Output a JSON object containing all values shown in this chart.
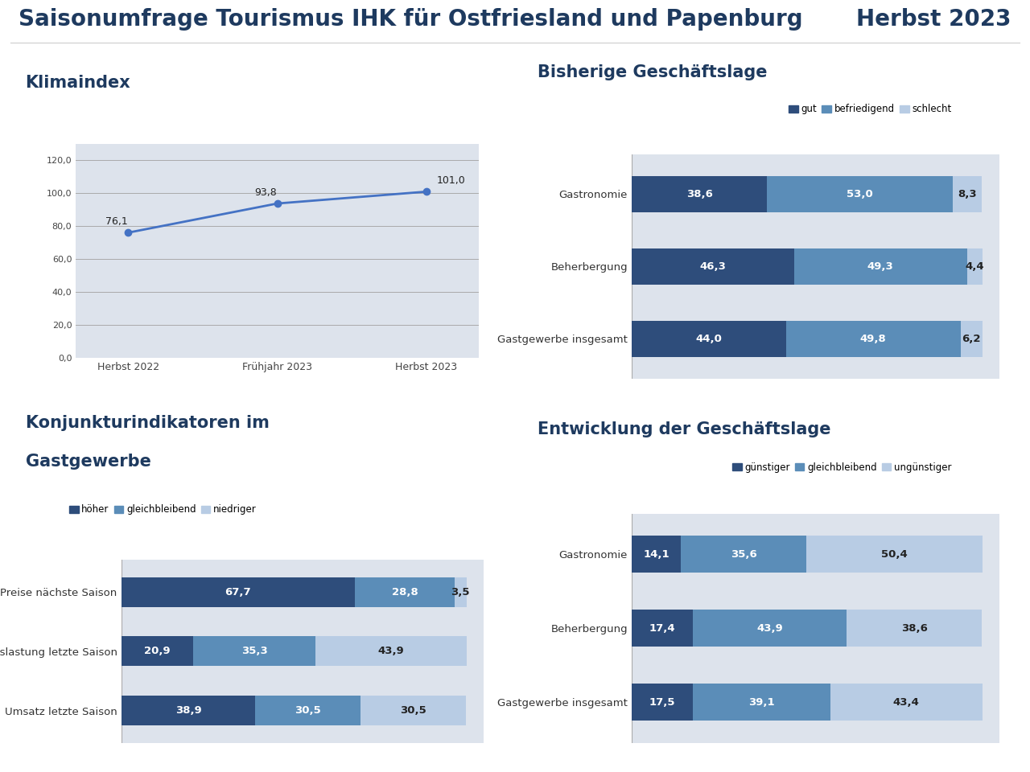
{
  "title": "Saisonumfrage Tourismus IHK für Ostfriesland und Papenburg",
  "title_right": "Herbst 2023",
  "bg_color": "#ffffff",
  "panel_bg": "#dde3ec",
  "icon_bg": "#1e3a5f",
  "header_color": "#1e3a5f",
  "klimaindex": {
    "title": "Klimaindex",
    "x_labels": [
      "Herbst 2022",
      "Frühjahr 2023",
      "Herbst 2023"
    ],
    "values": [
      76.1,
      93.8,
      101.0
    ],
    "line_color": "#4472c4",
    "marker_color": "#4472c4",
    "ylim": [
      0,
      130
    ],
    "yticks": [
      0.0,
      20.0,
      40.0,
      60.0,
      80.0,
      100.0,
      120.0
    ],
    "ytick_labels": [
      "0,0",
      "20,0",
      "40,0",
      "60,0",
      "80,0",
      "100,0",
      "120,0"
    ]
  },
  "bisherige": {
    "title": "Bisherige Geschäftslage",
    "categories": [
      "Gastronomie",
      "Beherbergung",
      "Gastgewerbe insgesamt"
    ],
    "legend_labels": [
      "gut",
      "befriedigend",
      "schlecht"
    ],
    "colors": [
      "#2e4d7b",
      "#5b8db8",
      "#b8cce4"
    ],
    "gut": [
      38.6,
      46.3,
      44.0
    ],
    "befriedigend": [
      53.0,
      49.3,
      49.8
    ],
    "schlecht": [
      8.3,
      4.4,
      6.2
    ]
  },
  "konjunktur": {
    "title_line1": "Konjunkturindikatoren im",
    "title_line2": "Gastgewerbe",
    "categories": [
      "Preise nächste Saison",
      "Auslastung letzte Saison",
      "Umsatz letzte Saison"
    ],
    "legend_labels": [
      "höher",
      "gleichbleibend",
      "niedriger"
    ],
    "colors": [
      "#2e4d7b",
      "#5b8db8",
      "#b8cce4"
    ],
    "hoeher": [
      67.7,
      20.9,
      38.9
    ],
    "gleichbleibend": [
      28.8,
      35.3,
      30.5
    ],
    "niedriger": [
      3.5,
      43.9,
      30.5
    ]
  },
  "entwicklung": {
    "title": "Entwicklung der Geschäftslage",
    "categories": [
      "Gastronomie",
      "Beherbergung",
      "Gastgewerbe insgesamt"
    ],
    "legend_labels": [
      "günstiger",
      "gleichbleibend",
      "ungünstiger"
    ],
    "colors": [
      "#2e4d7b",
      "#5b8db8",
      "#b8cce4"
    ],
    "guenstiger": [
      14.1,
      17.4,
      17.5
    ],
    "gleichbleibend": [
      35.6,
      43.9,
      39.1
    ],
    "unguenstiger": [
      50.4,
      38.6,
      43.4
    ]
  }
}
